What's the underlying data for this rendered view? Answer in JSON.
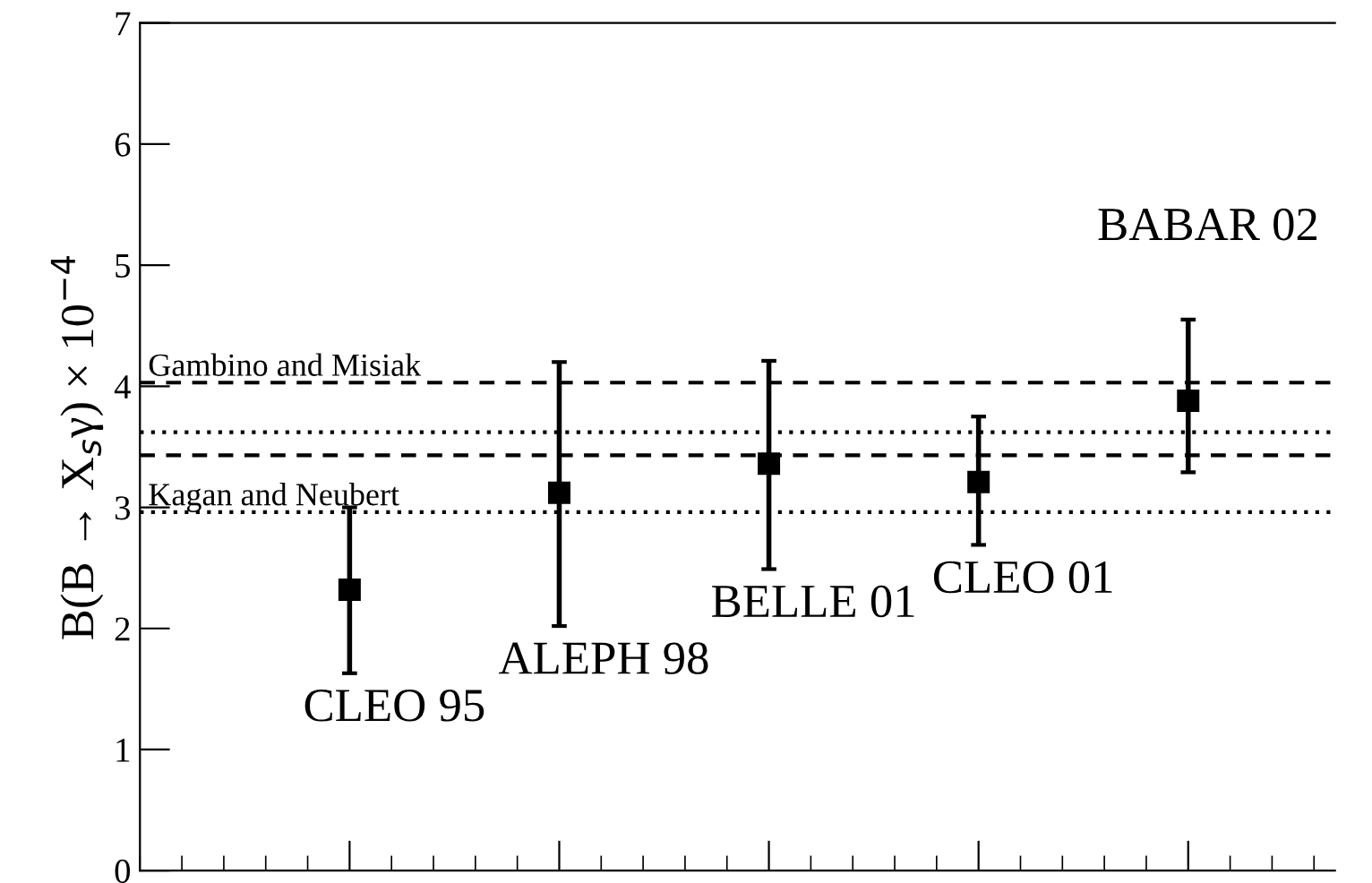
{
  "chart_data": {
    "type": "scatter",
    "ylabel": "B(B → X$_{s}$γ) × 10$^{−4}$",
    "categories": [
      null,
      null,
      null,
      null,
      null
    ],
    "series": [
      {
        "color": "#000000",
        "values": [
          2.32,
          3.12,
          3.36,
          3.21,
          3.88
        ],
        "errors": [
          [
            1.63,
            3.0
          ],
          [
            2.02,
            4.2
          ],
          [
            2.49,
            4.21
          ],
          [
            2.69,
            3.75
          ],
          [
            3.29,
            4.55
          ]
        ]
      }
    ],
    "marker": "square",
    "ylim": [
      0,
      7
    ],
    "yticks": [
      0,
      1,
      2,
      3,
      4,
      5,
      6,
      7
    ],
    "tick_labels": "y",
    "grid": false,
    "legend": false,
    "ref_lines": [
      {
        "axis": "y",
        "value": 4.03,
        "label": "Gambino and Misiak",
        "line_style": "dashed",
        "color": "#000000"
      },
      {
        "axis": "y",
        "value": 3.43,
        "label": null,
        "line_style": "dashed",
        "color": "#000000"
      },
      {
        "axis": "y",
        "value": 3.62,
        "label": null,
        "line_style": "dotted",
        "color": "#000000"
      },
      {
        "axis": "y",
        "value": 2.96,
        "label": "Kagan and Neubert",
        "line_style": "dotted",
        "color": "#000000"
      }
    ],
    "annotations": [
      "CLEO 95",
      "ALEPH 98",
      "BELLE 01",
      "CLEO 01",
      "BABAR 02"
    ]
  }
}
